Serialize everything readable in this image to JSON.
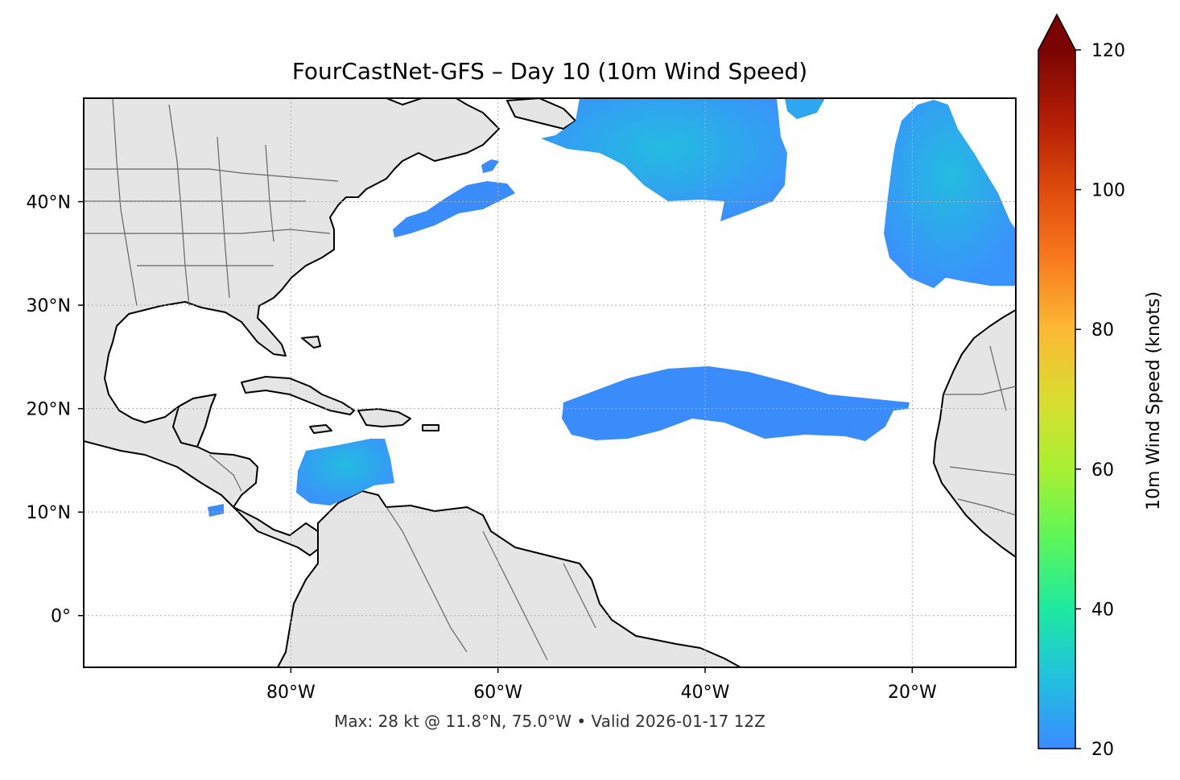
{
  "title": "FourCastNet-GFS – Day 10 (10m Wind Speed)",
  "footer": "Max: 28 kt @ 11.8°N, 75.0°W • Valid 2026-01-17 12Z",
  "map": {
    "lon_range": [
      -100,
      -10
    ],
    "lat_range": [
      -5,
      50
    ],
    "lon_ticks": [
      {
        "value": -80,
        "label": "80°W"
      },
      {
        "value": -60,
        "label": "60°W"
      },
      {
        "value": -40,
        "label": "40°W"
      },
      {
        "value": -20,
        "label": "20°W"
      }
    ],
    "lat_ticks": [
      {
        "value": 0,
        "label": "0°"
      },
      {
        "value": 10,
        "label": "10°N"
      },
      {
        "value": 20,
        "label": "20°N"
      },
      {
        "value": 30,
        "label": "30°N"
      },
      {
        "value": 40,
        "label": "40°N"
      }
    ],
    "gridlines": true,
    "land_color": "#e5e5e5",
    "ocean_color": "#ffffff",
    "max_marker": {
      "lat": 11.8,
      "lon": -75.0,
      "value_kt": 28
    }
  },
  "colorbar": {
    "label": "10m Wind Speed (knots)",
    "min": 20,
    "max": 120,
    "extend": "max",
    "ticks": [
      {
        "value": 20,
        "label": "20"
      },
      {
        "value": 40,
        "label": "40"
      },
      {
        "value": 60,
        "label": "60"
      },
      {
        "value": 80,
        "label": "80"
      },
      {
        "value": 100,
        "label": "100"
      },
      {
        "value": 120,
        "label": "120"
      }
    ],
    "colormap": "turbo",
    "stops": [
      "#3b8bff",
      "#22c0e0",
      "#1ee9a0",
      "#5cf55a",
      "#a8f032",
      "#d9dc30",
      "#fbb934",
      "#f97a1e",
      "#df4a0d",
      "#b31d05",
      "#7a0403"
    ]
  }
}
